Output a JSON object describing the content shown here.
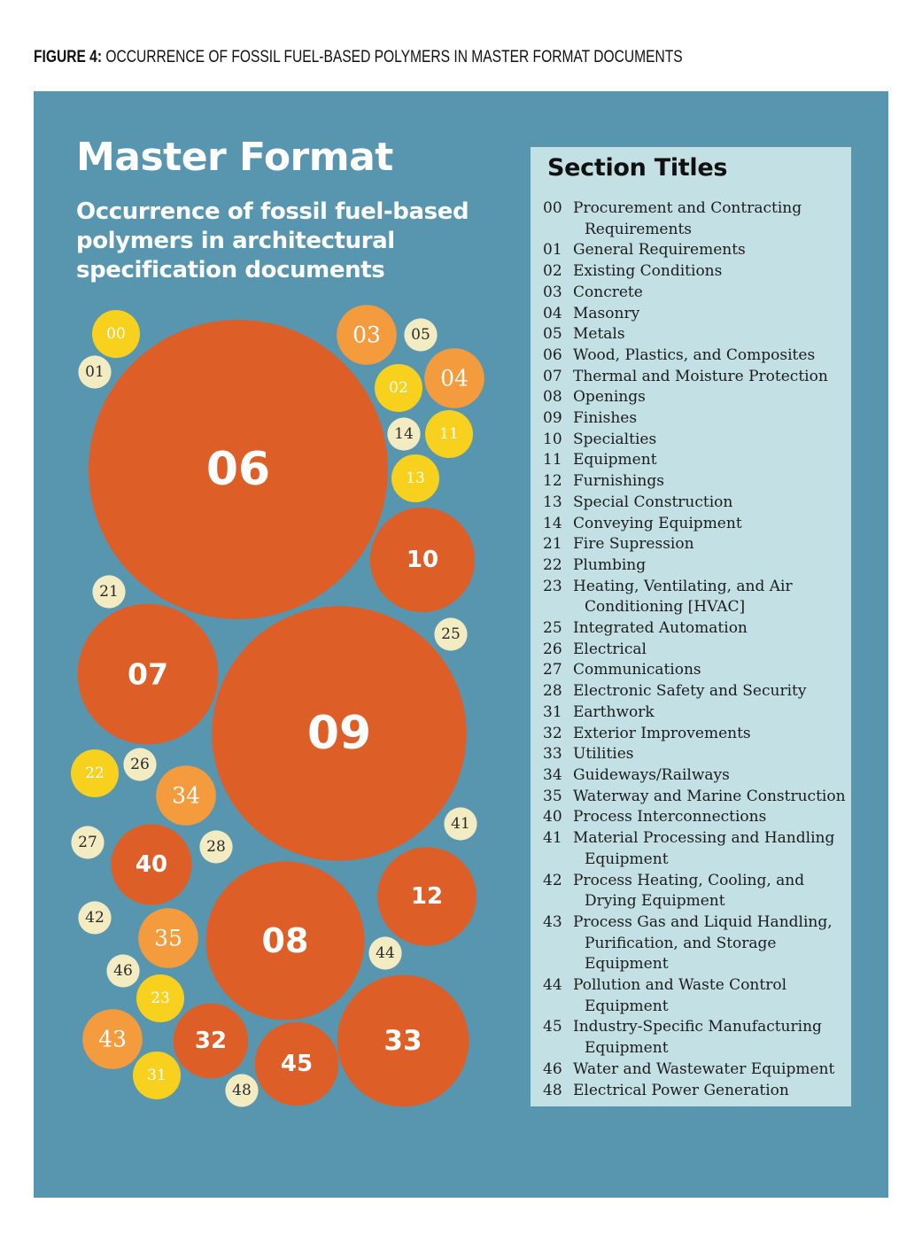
{
  "caption": {
    "lead": "FIGURE 4:",
    "text": " OCCURRENCE OF FOSSIL FUEL-BASED POLYMERS IN MASTER FORMAT DOCUMENTS"
  },
  "colors": {
    "panel": "#5896b0",
    "legend_bg": "#c3e0e4",
    "tier_highest": "#dd5e26",
    "tier_high": "#f39b3d",
    "tier_medium": "#f7d11e",
    "tier_low": "#f3ecc2"
  },
  "title": "Master Format",
  "subtitle_lines": [
    "Occurrence of fossil fuel-based",
    "polymers in architectural",
    "specification documents"
  ],
  "legend": {
    "title": "Section Titles",
    "items": [
      {
        "code": "00",
        "lines": [
          "Procurement and Contracting",
          "Requirements"
        ]
      },
      {
        "code": "01",
        "lines": [
          "General Requirements"
        ]
      },
      {
        "code": "02",
        "lines": [
          "Existing Conditions"
        ]
      },
      {
        "code": "03",
        "lines": [
          "Concrete"
        ]
      },
      {
        "code": "04",
        "lines": [
          "Masonry"
        ]
      },
      {
        "code": "05",
        "lines": [
          "Metals"
        ]
      },
      {
        "code": "06",
        "lines": [
          "Wood, Plastics, and Composites"
        ]
      },
      {
        "code": "07",
        "lines": [
          "Thermal and Moisture Protection"
        ]
      },
      {
        "code": "08",
        "lines": [
          "Openings"
        ]
      },
      {
        "code": "09",
        "lines": [
          "Finishes"
        ]
      },
      {
        "code": "10",
        "lines": [
          "Specialties"
        ]
      },
      {
        "code": "11",
        "lines": [
          "Equipment"
        ]
      },
      {
        "code": "12",
        "lines": [
          "Furnishings"
        ]
      },
      {
        "code": "13",
        "lines": [
          "Special Construction"
        ]
      },
      {
        "code": "14",
        "lines": [
          "Conveying Equipment"
        ]
      },
      {
        "code": "21",
        "lines": [
          "Fire Supression"
        ]
      },
      {
        "code": "22",
        "lines": [
          "Plumbing"
        ]
      },
      {
        "code": "23",
        "lines": [
          "Heating, Ventilating, and Air",
          "Conditioning [HVAC]"
        ]
      },
      {
        "code": "25",
        "lines": [
          "Integrated Automation"
        ]
      },
      {
        "code": "26",
        "lines": [
          "Electrical"
        ]
      },
      {
        "code": "27",
        "lines": [
          "Communications"
        ]
      },
      {
        "code": "28",
        "lines": [
          "Electronic Safety and Security"
        ]
      },
      {
        "code": "31",
        "lines": [
          "Earthwork"
        ]
      },
      {
        "code": "32",
        "lines": [
          "Exterior Improvements"
        ]
      },
      {
        "code": "33",
        "lines": [
          "Utilities"
        ]
      },
      {
        "code": "34",
        "lines": [
          "Guideways/Railways"
        ]
      },
      {
        "code": "35",
        "lines": [
          "Waterway and Marine Construction"
        ]
      },
      {
        "code": "40",
        "lines": [
          "Process Interconnections"
        ]
      },
      {
        "code": "41",
        "lines": [
          "Material Processing and Handling",
          "Equipment"
        ]
      },
      {
        "code": "42",
        "lines": [
          "Process Heating, Cooling, and",
          "Drying Equipment"
        ]
      },
      {
        "code": "43",
        "lines": [
          "Process Gas and Liquid Handling,",
          "Purification, and Storage",
          "Equipment"
        ]
      },
      {
        "code": "44",
        "lines": [
          "Pollution and Waste Control",
          "Equipment"
        ]
      },
      {
        "code": "45",
        "lines": [
          "Industry-Specific Manufacturing",
          "Equipment"
        ]
      },
      {
        "code": "46",
        "lines": [
          "Water and Wastewater Equipment"
        ]
      },
      {
        "code": "48",
        "lines": [
          "Electrical Power Generation"
        ]
      }
    ]
  },
  "chart_data": {
    "type": "bubble",
    "title": "Master Format",
    "subtitle": "Occurrence of fossil fuel-based polymers in architectural specification documents",
    "value_note": "relative bubble size (estimated, largest = 100)",
    "bubbles": [
      {
        "code": "06",
        "relative_size": 100,
        "tier": "tier_highest"
      },
      {
        "code": "09",
        "relative_size": 85,
        "tier": "tier_highest"
      },
      {
        "code": "08",
        "relative_size": 53,
        "tier": "tier_highest"
      },
      {
        "code": "07",
        "relative_size": 47,
        "tier": "tier_highest"
      },
      {
        "code": "33",
        "relative_size": 44,
        "tier": "tier_highest"
      },
      {
        "code": "10",
        "relative_size": 35,
        "tier": "tier_highest"
      },
      {
        "code": "12",
        "relative_size": 33,
        "tier": "tier_highest"
      },
      {
        "code": "45",
        "relative_size": 28,
        "tier": "tier_highest"
      },
      {
        "code": "40",
        "relative_size": 27,
        "tier": "tier_highest"
      },
      {
        "code": "32",
        "relative_size": 25,
        "tier": "tier_highest"
      },
      {
        "code": "34",
        "relative_size": 20,
        "tier": "tier_high"
      },
      {
        "code": "04",
        "relative_size": 20,
        "tier": "tier_high"
      },
      {
        "code": "03",
        "relative_size": 20,
        "tier": "tier_high"
      },
      {
        "code": "35",
        "relative_size": 20,
        "tier": "tier_high"
      },
      {
        "code": "43",
        "relative_size": 20,
        "tier": "tier_high"
      },
      {
        "code": "00",
        "relative_size": 16,
        "tier": "tier_medium"
      },
      {
        "code": "13",
        "relative_size": 16,
        "tier": "tier_medium"
      },
      {
        "code": "11",
        "relative_size": 16,
        "tier": "tier_medium"
      },
      {
        "code": "23",
        "relative_size": 16,
        "tier": "tier_medium"
      },
      {
        "code": "31",
        "relative_size": 16,
        "tier": "tier_medium"
      },
      {
        "code": "22",
        "relative_size": 16,
        "tier": "tier_medium"
      },
      {
        "code": "02",
        "relative_size": 16,
        "tier": "tier_medium"
      },
      {
        "code": "01",
        "relative_size": 11,
        "tier": "tier_low"
      },
      {
        "code": "05",
        "relative_size": 11,
        "tier": "tier_low"
      },
      {
        "code": "14",
        "relative_size": 11,
        "tier": "tier_low"
      },
      {
        "code": "21",
        "relative_size": 11,
        "tier": "tier_low"
      },
      {
        "code": "25",
        "relative_size": 11,
        "tier": "tier_low"
      },
      {
        "code": "26",
        "relative_size": 11,
        "tier": "tier_low"
      },
      {
        "code": "27",
        "relative_size": 11,
        "tier": "tier_low"
      },
      {
        "code": "28",
        "relative_size": 11,
        "tier": "tier_low"
      },
      {
        "code": "41",
        "relative_size": 11,
        "tier": "tier_low"
      },
      {
        "code": "42",
        "relative_size": 11,
        "tier": "tier_low"
      },
      {
        "code": "44",
        "relative_size": 11,
        "tier": "tier_low"
      },
      {
        "code": "46",
        "relative_size": 11,
        "tier": "tier_low"
      },
      {
        "code": "48",
        "relative_size": 11,
        "tier": "tier_low"
      }
    ]
  }
}
